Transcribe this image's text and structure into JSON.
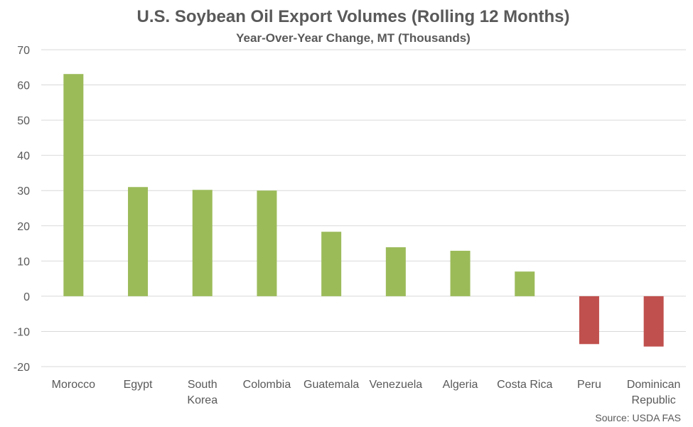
{
  "chart_data": {
    "type": "bar",
    "title": "U.S. Soybean Oil Export Volumes (Rolling 12 Months)",
    "subtitle": "Year-Over-Year Change, MT (Thousands)",
    "categories": [
      "Morocco",
      "Egypt",
      "South Korea",
      "Colombia",
      "Guatemala",
      "Venezuela",
      "Algeria",
      "Costa Rica",
      "Peru",
      "Dominican Republic"
    ],
    "category_lines": [
      [
        "Morocco"
      ],
      [
        "Egypt"
      ],
      [
        "South",
        "Korea"
      ],
      [
        "Colombia"
      ],
      [
        "Guatemala"
      ],
      [
        "Venezuela"
      ],
      [
        "Algeria"
      ],
      [
        "Costa Rica"
      ],
      [
        "Peru"
      ],
      [
        "Dominican",
        "Republic"
      ]
    ],
    "values": [
      63.1,
      31.0,
      30.2,
      30.0,
      18.3,
      13.9,
      12.9,
      7.0,
      -13.6,
      -14.3
    ],
    "ylim": [
      -20,
      70
    ],
    "yticks": [
      -20,
      -10,
      0,
      10,
      20,
      30,
      40,
      50,
      60,
      70
    ],
    "grid": true,
    "colors": {
      "positive": "#9bbb59",
      "negative": "#c0504d",
      "grid": "#d9d9d9",
      "text": "#595959"
    },
    "source": "Source: USDA FAS"
  }
}
